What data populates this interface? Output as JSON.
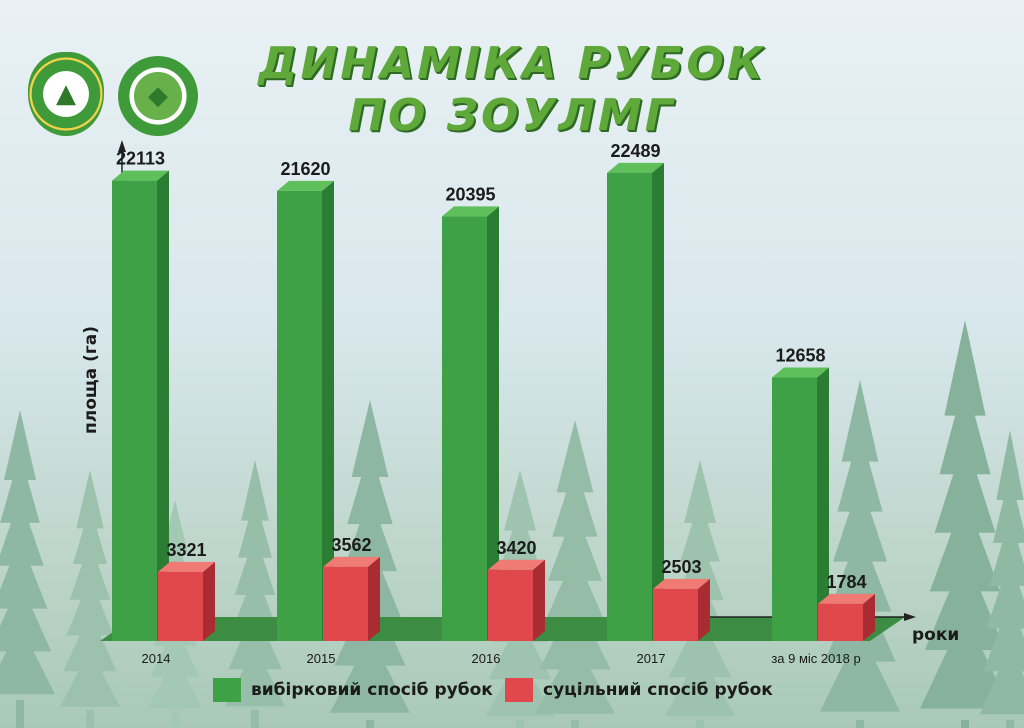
{
  "header": {
    "title_line1": "ДИНАМІКА РУБОК",
    "title_line2": "ПО ЗОУЛМГ"
  },
  "logos": [
    {
      "name": "state-forestry-agency-emblem"
    },
    {
      "name": "regional-forestry-administration-emblem"
    }
  ],
  "colors": {
    "selective": "#3ea145",
    "selective_top": "#5fbf5a",
    "selective_side": "#2b7d33",
    "clear": "#e0484b",
    "clear_top": "#f07a74",
    "clear_side": "#a82c31",
    "floor": "#3c8c44",
    "title": "#5fa83a"
  },
  "chart_data": {
    "type": "bar",
    "categories": [
      "2014",
      "2015",
      "2016",
      "2017",
      "за 9 міс 2018 р"
    ],
    "series": [
      {
        "name": "вибірковий спосіб рубок",
        "values": [
          22113,
          21620,
          20395,
          22489,
          12658
        ]
      },
      {
        "name": "суцільний спосіб рубок",
        "values": [
          3321,
          3562,
          3420,
          2503,
          1784
        ]
      }
    ],
    "ylabel": "площа (га)",
    "xlabel": "роки",
    "ylim": [
      0,
      25000
    ],
    "legend_position": "bottom"
  }
}
